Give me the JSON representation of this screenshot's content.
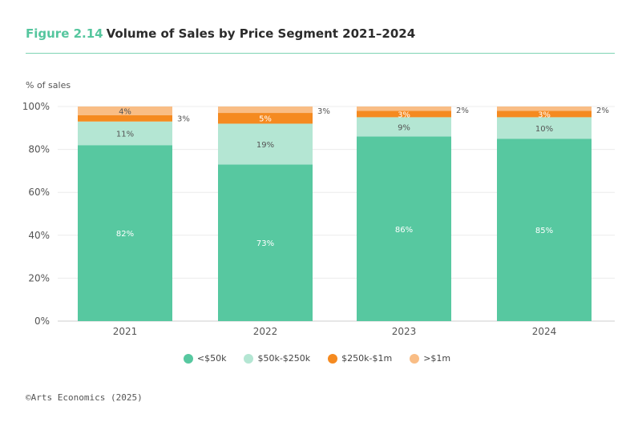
{
  "title": {
    "figure": "Figure 2.14",
    "text": "Volume of Sales by Price Segment 2021–2024"
  },
  "source": "©Arts Economics (2025)",
  "chart_data": {
    "type": "bar",
    "stacked": true,
    "ylabel": "% of sales",
    "ylim": [
      0,
      100
    ],
    "yticks": [
      "0%",
      "20%",
      "40%",
      "60%",
      "80%",
      "100%"
    ],
    "categories": [
      "2021",
      "2022",
      "2023",
      "2024"
    ],
    "grid": true,
    "legend_position": "bottom",
    "series": [
      {
        "name": "<$50k",
        "color": "#57c8a0",
        "values": [
          82,
          73,
          86,
          85
        ],
        "labels": [
          "82%",
          "73%",
          "86%",
          "85%"
        ],
        "label_color": "#ffffff"
      },
      {
        "name": "$50k-$250k",
        "color": "#b4e6d3",
        "values": [
          11,
          19,
          9,
          10
        ],
        "labels": [
          "11%",
          "19%",
          "9%",
          "10%"
        ],
        "label_color": "#555555"
      },
      {
        "name": "$250k-$1m",
        "color": "#f58a20",
        "values": [
          3,
          5,
          3,
          3
        ],
        "labels": [
          "3%",
          "5%",
          "3%",
          "3%"
        ],
        "label_color": "#ffffff"
      },
      {
        "name": ">$1m",
        "color": "#f9bd85",
        "values": [
          4,
          3,
          2,
          2
        ],
        "labels": [
          "4%",
          "3%",
          "2%",
          "2%"
        ],
        "label_color": "#555555"
      }
    ]
  }
}
